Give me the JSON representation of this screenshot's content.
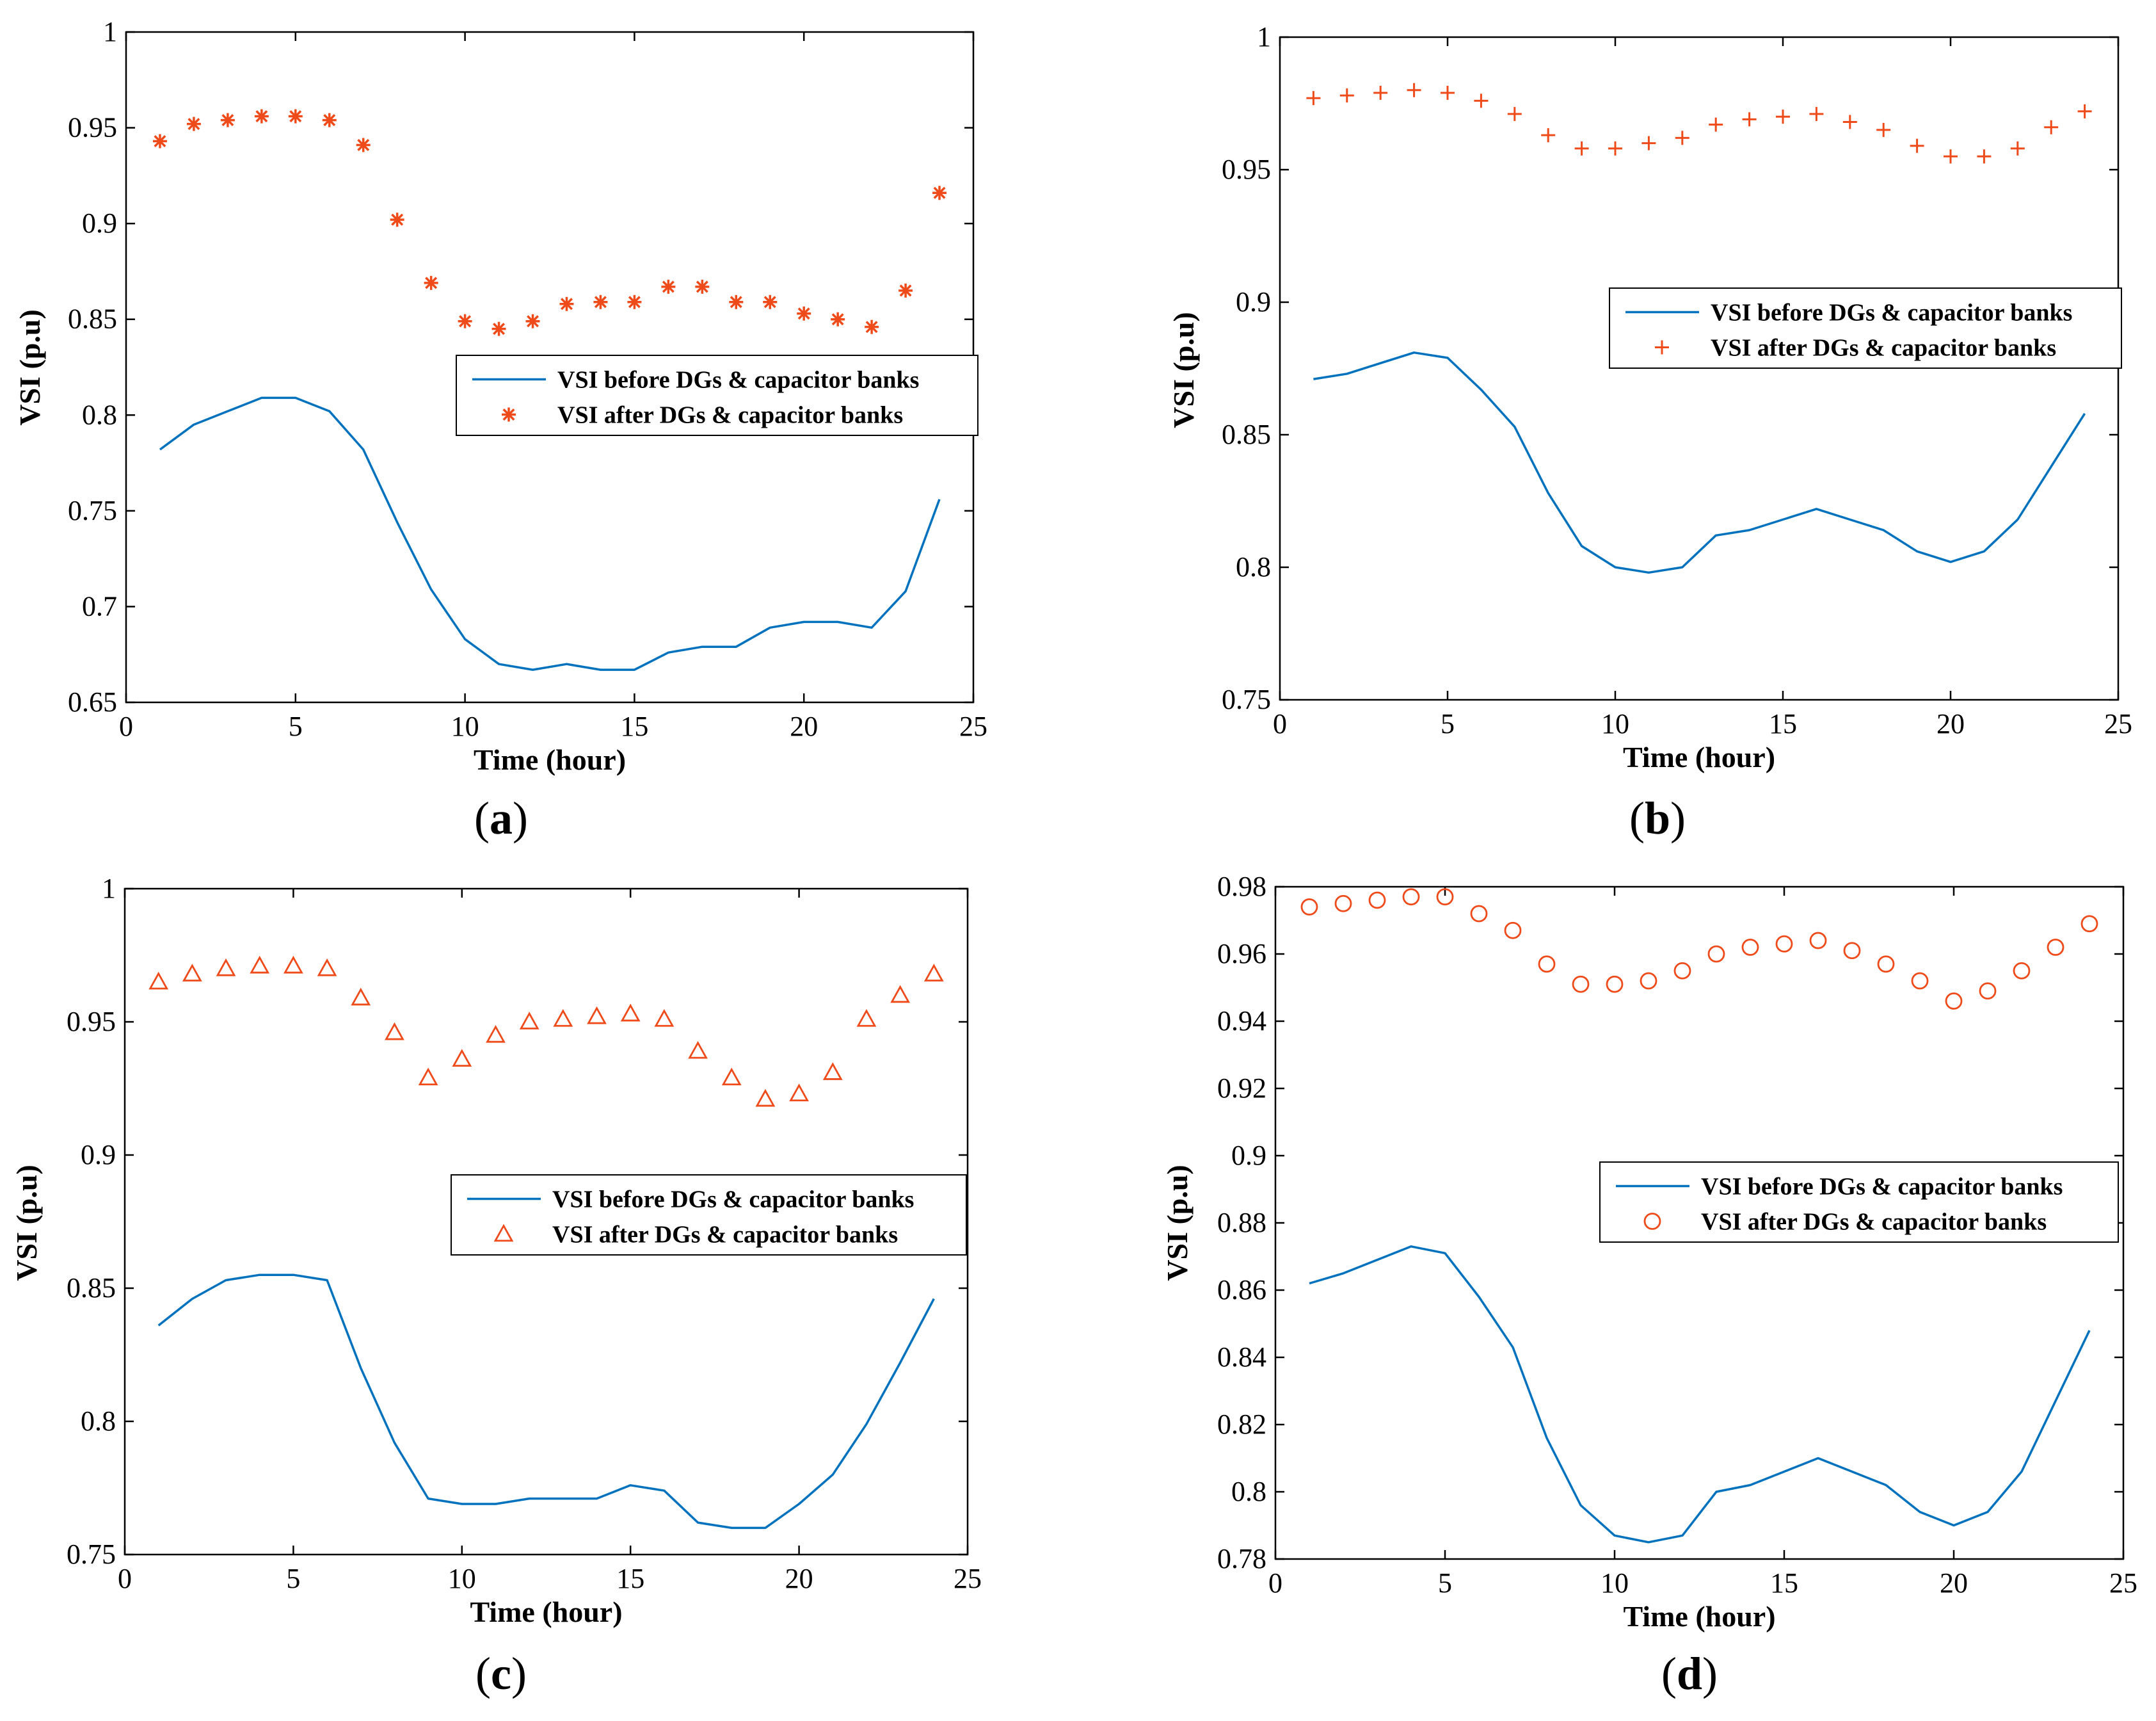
{
  "colors": {
    "before": "#0072BD",
    "after": "#EF4A19"
  },
  "chart_data": [
    {
      "type": "line",
      "panel": "a",
      "caption": {
        "open": "(",
        "letter": "a",
        "close": ")"
      },
      "xlabel": "Time (hour)",
      "ylabel": "VSI (p.u)",
      "xlim": [
        0,
        25
      ],
      "ylim": [
        0.65,
        1
      ],
      "xticks": [
        0,
        5,
        10,
        15,
        20,
        25
      ],
      "xtick_labels": [
        "0",
        "5",
        "10",
        "15",
        "20",
        "25"
      ],
      "yticks": [
        0.65,
        0.7,
        0.75,
        0.8,
        0.85,
        0.9,
        0.95,
        1
      ],
      "ytick_labels": [
        "0.65",
        "0.7",
        "0.75",
        "0.8",
        "0.85",
        "0.9",
        "0.95",
        "1"
      ],
      "legend_position": "middle-right",
      "marker": "asterisk",
      "series": [
        {
          "name": "VSI before DGs & capacitor banks",
          "style": "line",
          "x": [
            1,
            2,
            3,
            4,
            5,
            6,
            7,
            8,
            9,
            10,
            11,
            12,
            13,
            14,
            15,
            16,
            17,
            18,
            19,
            20,
            21,
            22,
            23,
            24
          ],
          "values": [
            0.782,
            0.795,
            0.802,
            0.809,
            0.809,
            0.802,
            0.782,
            0.744,
            0.709,
            0.683,
            0.67,
            0.667,
            0.67,
            0.667,
            0.667,
            0.676,
            0.679,
            0.679,
            0.689,
            0.692,
            0.692,
            0.689,
            0.708,
            0.756
          ]
        },
        {
          "name": "VSI after DGs & capacitor banks",
          "style": "marker",
          "x": [
            1,
            2,
            3,
            4,
            5,
            6,
            7,
            8,
            9,
            10,
            11,
            12,
            13,
            14,
            15,
            16,
            17,
            18,
            19,
            20,
            21,
            22,
            23,
            24
          ],
          "values": [
            0.943,
            0.952,
            0.954,
            0.956,
            0.956,
            0.954,
            0.941,
            0.902,
            0.869,
            0.849,
            0.845,
            0.849,
            0.858,
            0.859,
            0.859,
            0.867,
            0.867,
            0.859,
            0.859,
            0.853,
            0.85,
            0.846,
            0.865,
            0.916
          ]
        }
      ]
    },
    {
      "type": "line",
      "panel": "b",
      "caption": {
        "open": "(",
        "letter": "b",
        "close": ")"
      },
      "xlabel": "Time (hour)",
      "ylabel": "VSI (p.u)",
      "xlim": [
        0,
        25
      ],
      "ylim": [
        0.75,
        1
      ],
      "xticks": [
        0,
        5,
        10,
        15,
        20,
        25
      ],
      "xtick_labels": [
        "0",
        "5",
        "10",
        "15",
        "20",
        "25"
      ],
      "yticks": [
        0.75,
        0.8,
        0.85,
        0.9,
        0.95,
        1
      ],
      "ytick_labels": [
        "0.75",
        "0.8",
        "0.85",
        "0.9",
        "0.95",
        "1"
      ],
      "legend_position": "middle-right",
      "marker": "plus",
      "series": [
        {
          "name": "VSI before DGs & capacitor banks",
          "style": "line",
          "x": [
            1,
            2,
            3,
            4,
            5,
            6,
            7,
            8,
            9,
            10,
            11,
            12,
            13,
            14,
            15,
            16,
            17,
            18,
            19,
            20,
            21,
            22,
            23,
            24
          ],
          "values": [
            0.871,
            0.873,
            0.877,
            0.881,
            0.879,
            0.867,
            0.853,
            0.828,
            0.808,
            0.8,
            0.798,
            0.8,
            0.812,
            0.814,
            0.818,
            0.822,
            0.818,
            0.814,
            0.806,
            0.802,
            0.806,
            0.818,
            0.838,
            0.858
          ]
        },
        {
          "name": "VSI after DGs & capacitor banks",
          "style": "marker",
          "x": [
            1,
            2,
            3,
            4,
            5,
            6,
            7,
            8,
            9,
            10,
            11,
            12,
            13,
            14,
            15,
            16,
            17,
            18,
            19,
            20,
            21,
            22,
            23,
            24
          ],
          "values": [
            0.977,
            0.978,
            0.979,
            0.98,
            0.979,
            0.976,
            0.971,
            0.963,
            0.958,
            0.958,
            0.96,
            0.962,
            0.967,
            0.969,
            0.97,
            0.971,
            0.968,
            0.965,
            0.959,
            0.955,
            0.955,
            0.958,
            0.966,
            0.972
          ]
        }
      ]
    },
    {
      "type": "line",
      "panel": "c",
      "caption": {
        "open": "(",
        "letter": "c",
        "close": ")"
      },
      "xlabel": "Time (hour)",
      "ylabel": "VSI (p.u)",
      "xlim": [
        0,
        25
      ],
      "ylim": [
        0.75,
        1
      ],
      "xticks": [
        0,
        5,
        10,
        15,
        20,
        25
      ],
      "xtick_labels": [
        "0",
        "5",
        "10",
        "15",
        "20",
        "25"
      ],
      "yticks": [
        0.75,
        0.8,
        0.85,
        0.9,
        0.95,
        1
      ],
      "ytick_labels": [
        "0.75",
        "0.8",
        "0.85",
        "0.9",
        "0.95",
        "1"
      ],
      "legend_position": "middle-right",
      "marker": "triangle",
      "series": [
        {
          "name": "VSI before DGs & capacitor banks",
          "style": "line",
          "x": [
            1,
            2,
            3,
            4,
            5,
            6,
            7,
            8,
            9,
            10,
            11,
            12,
            13,
            14,
            15,
            16,
            17,
            18,
            19,
            20,
            21,
            22,
            23,
            24
          ],
          "values": [
            0.836,
            0.846,
            0.853,
            0.855,
            0.855,
            0.853,
            0.82,
            0.792,
            0.771,
            0.769,
            0.769,
            0.771,
            0.771,
            0.771,
            0.776,
            0.774,
            0.762,
            0.76,
            0.76,
            0.769,
            0.78,
            0.799,
            0.822,
            0.846
          ]
        },
        {
          "name": "VSI after DGs & capacitor banks",
          "style": "marker",
          "x": [
            1,
            2,
            3,
            4,
            5,
            6,
            7,
            8,
            9,
            10,
            11,
            12,
            13,
            14,
            15,
            16,
            17,
            18,
            19,
            20,
            21,
            22,
            23,
            24
          ],
          "values": [
            0.965,
            0.968,
            0.97,
            0.971,
            0.971,
            0.97,
            0.959,
            0.946,
            0.929,
            0.936,
            0.945,
            0.95,
            0.951,
            0.952,
            0.953,
            0.951,
            0.939,
            0.929,
            0.921,
            0.923,
            0.931,
            0.951,
            0.96,
            0.968
          ]
        }
      ]
    },
    {
      "type": "line",
      "panel": "d",
      "caption": {
        "open": "(",
        "letter": "d",
        "close": ")"
      },
      "xlabel": "Time (hour)",
      "ylabel": "VSI (p.u)",
      "xlim": [
        0,
        25
      ],
      "ylim": [
        0.78,
        0.98
      ],
      "xticks": [
        0,
        5,
        10,
        15,
        20,
        25
      ],
      "xtick_labels": [
        "0",
        "5",
        "10",
        "15",
        "20",
        "25"
      ],
      "yticks": [
        0.78,
        0.8,
        0.82,
        0.84,
        0.86,
        0.88,
        0.9,
        0.92,
        0.94,
        0.96,
        0.98
      ],
      "ytick_labels": [
        "0.78",
        "0.8",
        "0.82",
        "0.84",
        "0.86",
        "0.88",
        "0.9",
        "0.92",
        "0.94",
        "0.96",
        "0.98"
      ],
      "legend_position": "middle-right",
      "marker": "circle",
      "series": [
        {
          "name": "VSI before DGs & capacitor banks",
          "style": "line",
          "x": [
            1,
            2,
            3,
            4,
            5,
            6,
            7,
            8,
            9,
            10,
            11,
            12,
            13,
            14,
            15,
            16,
            17,
            18,
            19,
            20,
            21,
            22,
            23,
            24
          ],
          "values": [
            0.862,
            0.865,
            0.869,
            0.873,
            0.871,
            0.858,
            0.843,
            0.816,
            0.796,
            0.787,
            0.785,
            0.787,
            0.8,
            0.802,
            0.806,
            0.81,
            0.806,
            0.802,
            0.794,
            0.79,
            0.794,
            0.806,
            0.827,
            0.848
          ]
        },
        {
          "name": "VSI after DGs & capacitor banks",
          "style": "marker",
          "x": [
            1,
            2,
            3,
            4,
            5,
            6,
            7,
            8,
            9,
            10,
            11,
            12,
            13,
            14,
            15,
            16,
            17,
            18,
            19,
            20,
            21,
            22,
            23,
            24
          ],
          "values": [
            0.974,
            0.975,
            0.976,
            0.977,
            0.977,
            0.972,
            0.967,
            0.957,
            0.951,
            0.951,
            0.952,
            0.955,
            0.96,
            0.962,
            0.963,
            0.964,
            0.961,
            0.957,
            0.952,
            0.946,
            0.949,
            0.955,
            0.962,
            0.969
          ]
        }
      ]
    }
  ]
}
